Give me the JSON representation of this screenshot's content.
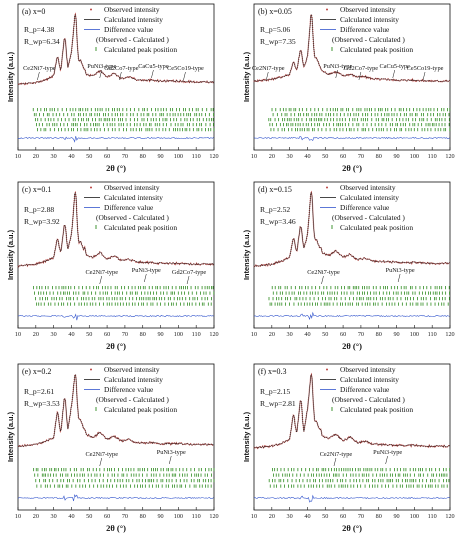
{
  "figure": {
    "legend": {
      "observed": "Observed intensity",
      "calculated": "Calculated intensity",
      "difference_1": "Difference value",
      "difference_2": "(Observed - Calculated )",
      "peak_position": "Calculated peak position"
    },
    "colors": {
      "observed": "#c0504d",
      "calculated": "#1a1a1a",
      "difference": "#3355cc",
      "peak_marks": "#2e8b1f"
    }
  },
  "chart_data": [
    {
      "type": "line",
      "panel_label": "(a) x=0",
      "rp": "R_p=4.38",
      "rwp": "R_wp=6.34",
      "xlabel": "2θ (°)",
      "ylabel": "Intensity (a.u.)",
      "xlim": [
        10,
        120
      ],
      "xticks": [
        10,
        20,
        30,
        40,
        50,
        60,
        70,
        80,
        90,
        100,
        110,
        120
      ],
      "series": [
        {
          "x": [
            10,
            20,
            26,
            30,
            32,
            34,
            36,
            38,
            40,
            42,
            44,
            46,
            48,
            52,
            56,
            60,
            64,
            68,
            72,
            76,
            80,
            85,
            90,
            100,
            110,
            120
          ],
          "y": [
            0.18,
            0.2,
            0.24,
            0.28,
            0.5,
            0.34,
            0.72,
            0.38,
            0.55,
            1.0,
            0.46,
            0.42,
            0.3,
            0.28,
            0.34,
            0.27,
            0.31,
            0.25,
            0.27,
            0.24,
            0.23,
            0.23,
            0.22,
            0.22,
            0.21,
            0.21
          ]
        }
      ],
      "annotations": [
        {
          "text": "Ce2Ni7-type",
          "x": 22
        },
        {
          "text": "PuNi3-type",
          "x": 57
        },
        {
          "text": "Gd2Co7-type",
          "x": 68
        },
        {
          "text": "CaCu5-type",
          "x": 86
        },
        {
          "text": "Ce5Co19-type",
          "x": 104
        }
      ]
    },
    {
      "type": "line",
      "panel_label": "(b) x=0.05",
      "rp": "R_p=5.06",
      "rwp": "R_wp=7.35",
      "xlabel": "2θ (°)",
      "ylabel": "Intensity (a.u.)",
      "xlim": [
        10,
        120
      ],
      "xticks": [
        10,
        20,
        30,
        40,
        50,
        60,
        70,
        80,
        90,
        100,
        110,
        120
      ],
      "series": [
        {
          "x": [
            10,
            20,
            26,
            30,
            32,
            34,
            36,
            38,
            40,
            42,
            44,
            46,
            48,
            52,
            56,
            60,
            64,
            68,
            72,
            76,
            80,
            85,
            90,
            100,
            110,
            120
          ],
          "y": [
            0.22,
            0.24,
            0.27,
            0.3,
            0.44,
            0.34,
            0.58,
            0.38,
            0.5,
            1.0,
            0.5,
            0.44,
            0.34,
            0.3,
            0.33,
            0.28,
            0.3,
            0.27,
            0.27,
            0.25,
            0.24,
            0.24,
            0.23,
            0.23,
            0.22,
            0.22
          ]
        }
      ],
      "annotations": [
        {
          "text": "Ce2Ni7-type",
          "x": 18
        },
        {
          "text": "PuNi3-type",
          "x": 57
        },
        {
          "text": "Gd2Co7-type",
          "x": 70
        },
        {
          "text": "CaCu5-type",
          "x": 89
        },
        {
          "text": "Ce5Co19-type",
          "x": 106
        }
      ]
    },
    {
      "type": "line",
      "panel_label": "(c) x=0.1",
      "rp": "R_p=2.88",
      "rwp": "R_wp=3.92",
      "xlabel": "2θ (°)",
      "ylabel": "Intensity (a.u.)",
      "xlim": [
        10,
        120
      ],
      "xticks": [
        10,
        20,
        30,
        40,
        50,
        60,
        70,
        80,
        90,
        100,
        110,
        120
      ],
      "series": [
        {
          "x": [
            10,
            20,
            26,
            30,
            32,
            34,
            36,
            38,
            40,
            42,
            44,
            46,
            48,
            52,
            56,
            60,
            64,
            68,
            72,
            76,
            80,
            85,
            90,
            100,
            110,
            120
          ],
          "y": [
            0.14,
            0.16,
            0.2,
            0.24,
            0.45,
            0.3,
            0.62,
            0.34,
            0.5,
            1.0,
            0.42,
            0.38,
            0.26,
            0.24,
            0.3,
            0.22,
            0.26,
            0.2,
            0.22,
            0.19,
            0.18,
            0.18,
            0.17,
            0.17,
            0.16,
            0.16
          ]
        }
      ],
      "annotations": [
        {
          "text": "Ce2Ni7-type",
          "x": 57
        },
        {
          "text": "PuNi3-type",
          "x": 82
        },
        {
          "text": "Gd2Co7-type",
          "x": 106
        }
      ]
    },
    {
      "type": "line",
      "panel_label": "(d) x=0.15",
      "rp": "R_p=2.52",
      "rwp": "R_wp=3.46",
      "xlabel": "2θ (°)",
      "ylabel": "Intensity (a.u.)",
      "xlim": [
        10,
        120
      ],
      "xticks": [
        10,
        20,
        30,
        40,
        50,
        60,
        70,
        80,
        90,
        100,
        110,
        120
      ],
      "series": [
        {
          "x": [
            10,
            20,
            26,
            30,
            32,
            34,
            36,
            38,
            40,
            42,
            44,
            46,
            48,
            52,
            56,
            60,
            64,
            68,
            72,
            76,
            80,
            85,
            90,
            100,
            110,
            120
          ],
          "y": [
            0.14,
            0.16,
            0.2,
            0.24,
            0.46,
            0.3,
            0.6,
            0.34,
            0.5,
            1.0,
            0.46,
            0.4,
            0.3,
            0.26,
            0.32,
            0.24,
            0.28,
            0.21,
            0.23,
            0.2,
            0.19,
            0.19,
            0.18,
            0.18,
            0.17,
            0.17
          ]
        }
      ],
      "annotations": [
        {
          "text": "Ce2Ni7-type",
          "x": 49
        },
        {
          "text": "PuNi3-type",
          "x": 92
        }
      ]
    },
    {
      "type": "line",
      "panel_label": "(e) x=0.2",
      "rp": "R_p=2.61",
      "rwp": "R_wp=3.53",
      "xlabel": "2θ (°)",
      "ylabel": "Intensity (a.u.)",
      "xlim": [
        10,
        120
      ],
      "xticks": [
        10,
        20,
        30,
        40,
        50,
        60,
        70,
        80,
        90,
        100,
        110,
        120
      ],
      "series": [
        {
          "x": [
            10,
            20,
            26,
            30,
            32,
            34,
            36,
            38,
            40,
            42,
            44,
            46,
            48,
            52,
            56,
            60,
            64,
            68,
            72,
            76,
            80,
            85,
            90,
            100,
            110,
            120
          ],
          "y": [
            0.16,
            0.18,
            0.22,
            0.26,
            0.55,
            0.32,
            0.72,
            0.36,
            0.62,
            1.0,
            0.48,
            0.42,
            0.3,
            0.26,
            0.32,
            0.24,
            0.28,
            0.22,
            0.24,
            0.2,
            0.2,
            0.2,
            0.19,
            0.19,
            0.18,
            0.18
          ]
        }
      ],
      "annotations": [
        {
          "text": "Ce2Ni7-type",
          "x": 57
        },
        {
          "text": "PuNi3-type",
          "x": 96
        }
      ]
    },
    {
      "type": "line",
      "panel_label": "(f) x=0.3",
      "rp": "R_p=2.15",
      "rwp": "R_wp=2.81",
      "xlabel": "2θ (°)",
      "ylabel": "Intensity (a.u.)",
      "xlim": [
        10,
        120
      ],
      "xticks": [
        10,
        20,
        30,
        40,
        50,
        60,
        70,
        80,
        90,
        100,
        110,
        120
      ],
      "series": [
        {
          "x": [
            10,
            20,
            26,
            30,
            32,
            34,
            36,
            38,
            40,
            42,
            44,
            46,
            48,
            52,
            56,
            60,
            64,
            68,
            72,
            76,
            80,
            85,
            90,
            100,
            110,
            120
          ],
          "y": [
            0.14,
            0.16,
            0.2,
            0.24,
            0.52,
            0.3,
            0.7,
            0.34,
            0.58,
            1.0,
            0.46,
            0.4,
            0.28,
            0.25,
            0.3,
            0.22,
            0.27,
            0.2,
            0.22,
            0.19,
            0.18,
            0.18,
            0.17,
            0.17,
            0.16,
            0.16
          ]
        }
      ],
      "annotations": [
        {
          "text": "Ce2Ni7-type",
          "x": 56
        },
        {
          "text": "PuNi3-type",
          "x": 85
        }
      ]
    }
  ]
}
